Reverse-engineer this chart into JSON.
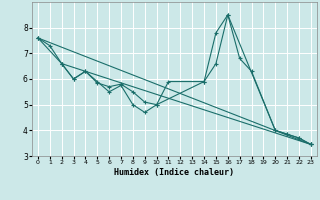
{
  "xlabel": "Humidex (Indice chaleur)",
  "bg_color": "#cce8e8",
  "grid_color": "#ffffff",
  "line_color": "#1a6e6a",
  "xlim": [
    -0.5,
    23.5
  ],
  "ylim": [
    3,
    9
  ],
  "xticks": [
    0,
    1,
    2,
    3,
    4,
    5,
    6,
    7,
    8,
    9,
    10,
    11,
    12,
    13,
    14,
    15,
    16,
    17,
    18,
    19,
    20,
    21,
    22,
    23
  ],
  "yticks": [
    3,
    4,
    5,
    6,
    7,
    8
  ],
  "lines": [
    {
      "x": [
        0,
        1,
        2,
        3,
        4,
        5,
        6,
        7,
        8,
        9,
        10,
        11,
        14,
        15,
        16,
        17,
        18,
        20,
        21,
        22,
        23
      ],
      "y": [
        7.6,
        7.3,
        6.6,
        6.0,
        6.3,
        5.9,
        5.5,
        5.75,
        5.0,
        4.7,
        5.0,
        5.9,
        5.9,
        7.8,
        8.5,
        6.8,
        6.3,
        4.0,
        3.85,
        3.7,
        3.45
      ]
    },
    {
      "x": [
        0,
        2,
        3,
        4,
        5,
        6,
        7,
        8,
        9,
        10,
        14,
        15,
        16,
        20,
        21,
        22,
        23
      ],
      "y": [
        7.6,
        6.6,
        6.0,
        6.3,
        5.85,
        5.7,
        5.8,
        5.5,
        5.1,
        5.0,
        5.9,
        6.6,
        8.5,
        4.0,
        3.85,
        3.7,
        3.45
      ]
    },
    {
      "x": [
        0,
        23
      ],
      "y": [
        7.6,
        3.45
      ]
    },
    {
      "x": [
        2,
        23
      ],
      "y": [
        6.6,
        3.45
      ]
    }
  ]
}
